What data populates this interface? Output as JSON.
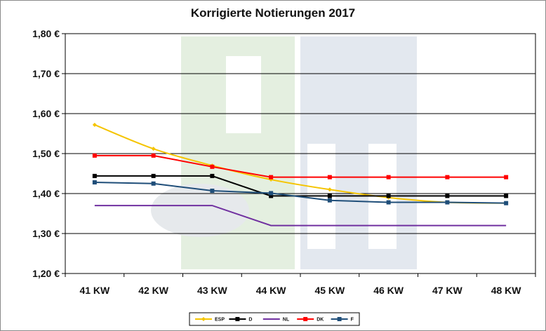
{
  "chart_data": {
    "type": "line",
    "title": "Korrigierte Notierungen 2017",
    "categories": [
      "41 KW",
      "42 KW",
      "43 KW",
      "44 KW",
      "45 KW",
      "46 KW",
      "47 KW",
      "48 KW"
    ],
    "y_ticks": [
      "1,20 €",
      "1,30 €",
      "1,40 €",
      "1,50 €",
      "1,60 €",
      "1,70 €",
      "1,80 €"
    ],
    "ylim": [
      1.2,
      1.8
    ],
    "grid": true,
    "legend_position": "bottom",
    "series": [
      {
        "name": "ESP",
        "color": "#f5c400",
        "marker": "diamond",
        "smooth": true,
        "values": [
          1.572,
          1.512,
          1.47,
          1.435,
          1.41,
          1.39,
          1.378,
          1.376
        ]
      },
      {
        "name": "D",
        "color": "#000000",
        "marker": "square",
        "smooth": false,
        "values": [
          1.444,
          1.444,
          1.444,
          1.394,
          1.394,
          1.394,
          1.394,
          1.394
        ]
      },
      {
        "name": "NL",
        "color": "#7030a0",
        "marker": "none",
        "smooth": false,
        "values": [
          1.37,
          1.37,
          1.37,
          1.32,
          1.32,
          1.32,
          1.32,
          1.32
        ]
      },
      {
        "name": "DK",
        "color": "#ff0000",
        "marker": "square",
        "smooth": false,
        "values": [
          1.495,
          1.495,
          1.467,
          1.441,
          1.441,
          1.441,
          1.441,
          1.441
        ]
      },
      {
        "name": "F",
        "color": "#1f4e79",
        "marker": "square",
        "smooth": false,
        "values": [
          1.428,
          1.425,
          1.407,
          1.401,
          1.383,
          1.378,
          1.378,
          1.376
        ]
      }
    ]
  }
}
